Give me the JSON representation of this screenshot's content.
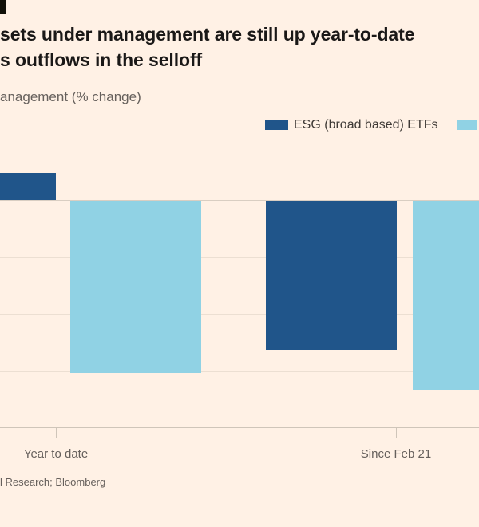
{
  "header": {
    "title_lines": [
      "sets under management are still up year-to-date",
      "s outflows in the selloff"
    ],
    "subtitle": "anagement (% change)"
  },
  "legend": {
    "items": [
      {
        "label": "ESG (broad based) ETFs",
        "color": "#20558a"
      },
      {
        "label": "",
        "label_note": "second legend label cropped off right edge",
        "color": "#90d2e4"
      }
    ]
  },
  "chart_data": {
    "type": "bar",
    "title": "sets under management are still up year-to-date / s outflows in the selloff (headline cropped at left edge)",
    "ylabel": "anagement (% change) (subtitle cropped at left edge)",
    "categories": [
      "Year to date",
      "Since Feb 21"
    ],
    "series": [
      {
        "name": "ESG (broad based) ETFs",
        "color": "#20558a",
        "values_grid_units": [
          0.48,
          -2.63
        ]
      },
      {
        "name": "",
        "color": "#90d2e4",
        "values_grid_units": [
          -3.03,
          -3.33
        ]
      }
    ],
    "value_note": "y-axis tick labels are cropped out of the screenshot; values expressed in gridline-interval units relative to the zero line",
    "ylim_grid_units": [
      -4,
      1
    ],
    "gridline_units": [
      1,
      0,
      -1,
      -2,
      -3
    ],
    "zero_line_unit": 0,
    "grid_on": true,
    "legend_position": "top-right"
  },
  "source": "l Research; Bloomberg",
  "colors": {
    "background": "#FFF1E5",
    "dark_blue": "#20558a",
    "light_blue": "#90d2e4",
    "gridline": "#ecdfd2",
    "zero_line": "#d9cec2",
    "axis_line": "#cfc5b9",
    "title_text": "#1a1817",
    "muted_text": "#66605c",
    "legend_text": "#3f3a36"
  }
}
